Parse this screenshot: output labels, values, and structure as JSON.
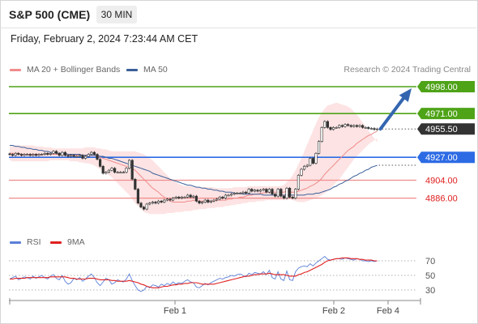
{
  "header": {
    "symbol": "S&P 500 (CME)",
    "interval": "30 MIN"
  },
  "datetime": "Friday, February 2, 2024 7:23:44 AM CET",
  "copyright": "Research © 2024 Trading Central",
  "legend": {
    "ma20": {
      "label": "MA 20 + Bollinger Bands",
      "color": "#f08c8c"
    },
    "ma50": {
      "label": "MA 50",
      "color": "#3b5f99"
    }
  },
  "rsi_legend": {
    "rsi": {
      "label": "RSI",
      "color": "#5b7fd8"
    },
    "ma9": {
      "label": "9MA",
      "color": "#e02020"
    }
  },
  "colors": {
    "resistance": "#4ea317",
    "pivot": "#2d6be4",
    "support": "#f08c8c",
    "support_text": "#e02020",
    "current": "#333333",
    "arrow": "#3466b0",
    "band_fill": "#fcdcdc",
    "candle": "#333333"
  },
  "chart_data": [
    {
      "type": "candlestick",
      "ylim": [
        4872,
        5004
      ],
      "x_labels": [
        "Feb 1",
        "Feb 2",
        "Feb 4"
      ],
      "levels": [
        {
          "value": 4998.0,
          "label": "4998.00",
          "kind": "resistance"
        },
        {
          "value": 4971.0,
          "label": "4971.00",
          "kind": "resistance"
        },
        {
          "value": 4955.5,
          "label": "4955.50",
          "kind": "current"
        },
        {
          "value": 4927.0,
          "label": "4927.00",
          "kind": "pivot"
        },
        {
          "value": 4904.0,
          "label": "4904.00",
          "kind": "support"
        },
        {
          "value": 4886.0,
          "label": "4886.00",
          "kind": "support"
        }
      ],
      "forecast_target": 4998.0,
      "closes": [
        4930,
        4929,
        4931,
        4930,
        4929,
        4930,
        4930,
        4929,
        4930,
        4929,
        4930,
        4930,
        4931,
        4930,
        4931,
        4933,
        4931,
        4929,
        4932,
        4929,
        4928,
        4929,
        4928,
        4928,
        4929,
        4926,
        4928,
        4930,
        4932,
        4930,
        4925,
        4918,
        4911,
        4912,
        4914,
        4916,
        4912,
        4912,
        4912,
        4912,
        4916,
        4924,
        4905,
        4895,
        4881,
        4877,
        4875,
        4880,
        4881,
        4882,
        4881,
        4883,
        4882,
        4884,
        4885,
        4884,
        4886,
        4887,
        4886,
        4887,
        4887,
        4889,
        4887,
        4888,
        4883,
        4881,
        4882,
        4884,
        4882,
        4883,
        4884,
        4885,
        4887,
        4886,
        4889,
        4889,
        4890,
        4891,
        4891,
        4891,
        4892,
        4891,
        4895,
        4893,
        4894,
        4893,
        4894,
        4895,
        4892,
        4895,
        4890,
        4888,
        4895,
        4888,
        4886,
        4896,
        4887,
        4886,
        4895,
        4909,
        4915,
        4918,
        4919,
        4926,
        4921,
        4931,
        4943,
        4957,
        4963,
        4957,
        4955,
        4957,
        4957,
        4959,
        4958,
        4960,
        4959,
        4958,
        4959,
        4958,
        4959,
        4957,
        4957,
        4956,
        4956,
        4955,
        4955.5
      ],
      "ma20": [
        4931,
        4931,
        4931,
        4931,
        4930,
        4930,
        4930,
        4930,
        4930,
        4930,
        4930,
        4930,
        4930,
        4930,
        4930,
        4930,
        4930,
        4930,
        4930,
        4930,
        4930,
        4929,
        4929,
        4929,
        4929,
        4929,
        4929,
        4929,
        4929,
        4929,
        4928,
        4927,
        4926,
        4925,
        4924,
        4923,
        4922,
        4921,
        4920,
        4919,
        4918,
        4918,
        4916,
        4914,
        4911,
        4908,
        4905,
        4902,
        4899,
        4896,
        4894,
        4892,
        4889,
        4887,
        4885,
        4883,
        4882,
        4882,
        4882,
        4882,
        4882,
        4883,
        4883,
        4884,
        4883,
        4883,
        4883,
        4883,
        4883,
        4883,
        4883,
        4884,
        4884,
        4884,
        4884,
        4885,
        4885,
        4886,
        4886,
        4887,
        4887,
        4888,
        4889,
        4889,
        4890,
        4890,
        4891,
        4891,
        4892,
        4892,
        4892,
        4892,
        4892,
        4892,
        4892,
        4893,
        4892,
        4892,
        4892,
        4893,
        4894,
        4895,
        4896,
        4898,
        4899,
        4901,
        4903,
        4906,
        4910,
        4913,
        4916,
        4919,
        4922,
        4925,
        4928,
        4931,
        4934,
        4936,
        4938,
        4941,
        4943,
        4945,
        4947,
        4949,
        4950,
        4952,
        4953
      ],
      "ma50": [
        4939,
        4939,
        4938,
        4938,
        4937,
        4937,
        4936,
        4936,
        4935,
        4935,
        4934,
        4934,
        4933,
        4933,
        4932,
        4932,
        4931,
        4931,
        4931,
        4931,
        4930,
        4930,
        4930,
        4930,
        4930,
        4929,
        4929,
        4929,
        4929,
        4929,
        4929,
        4928,
        4928,
        4927,
        4926,
        4926,
        4925,
        4924,
        4923,
        4922,
        4921,
        4920,
        4919,
        4918,
        4917,
        4916,
        4915,
        4914,
        4913,
        4911,
        4910,
        4909,
        4908,
        4907,
        4906,
        4905,
        4904,
        4903,
        4902,
        4901,
        4900,
        4899,
        4899,
        4898,
        4897,
        4897,
        4896,
        4896,
        4895,
        4895,
        4894,
        4894,
        4893,
        4893,
        4892,
        4892,
        4892,
        4891,
        4891,
        4891,
        4890,
        4890,
        4890,
        4890,
        4890,
        4890,
        4890,
        4889,
        4889,
        4889,
        4889,
        4889,
        4889,
        4889,
        4889,
        4889,
        4889,
        4889,
        4889,
        4889,
        4889,
        4889,
        4890,
        4890,
        4890,
        4891,
        4891,
        4892,
        4893,
        4894,
        4895,
        4897,
        4898,
        4900,
        4901,
        4903,
        4904,
        4906,
        4908,
        4909,
        4911,
        4912,
        4914,
        4915,
        4917,
        4918,
        4919
      ],
      "bb_upper": [
        4938,
        4938,
        4939,
        4939,
        4939,
        4939,
        4939,
        4939,
        4939,
        4938,
        4938,
        4938,
        4937,
        4937,
        4937,
        4936,
        4936,
        4936,
        4936,
        4936,
        4936,
        4936,
        4936,
        4936,
        4936,
        4936,
        4937,
        4937,
        4937,
        4937,
        4936,
        4936,
        4935,
        4935,
        4934,
        4933,
        4933,
        4933,
        4933,
        4933,
        4933,
        4933,
        4933,
        4933,
        4932,
        4931,
        4930,
        4928,
        4926,
        4924,
        4921,
        4918,
        4915,
        4912,
        4909,
        4906,
        4904,
        4902,
        4900,
        4899,
        4898,
        4898,
        4898,
        4897,
        4897,
        4897,
        4897,
        4897,
        4897,
        4897,
        4897,
        4896,
        4896,
        4896,
        4896,
        4896,
        4896,
        4897,
        4897,
        4897,
        4897,
        4897,
        4898,
        4898,
        4898,
        4898,
        4898,
        4898,
        4898,
        4898,
        4898,
        4898,
        4898,
        4898,
        4899,
        4902,
        4905,
        4909,
        4914,
        4920,
        4926,
        4933,
        4940,
        4947,
        4954,
        4961,
        4967,
        4972,
        4976,
        4979,
        4980,
        4981,
        4982,
        4981,
        4980,
        4979,
        4978,
        4976,
        4973,
        4970,
        4966,
        4962,
        4958,
        4954,
        4950,
        4946,
        4942
      ],
      "bb_lower": [
        4924,
        4923,
        4923,
        4923,
        4923,
        4923,
        4923,
        4923,
        4923,
        4923,
        4923,
        4923,
        4923,
        4923,
        4924,
        4924,
        4924,
        4924,
        4924,
        4924,
        4924,
        4923,
        4923,
        4923,
        4922,
        4922,
        4921,
        4921,
        4920,
        4919,
        4917,
        4915,
        4913,
        4911,
        4909,
        4907,
        4904,
        4901,
        4898,
        4895,
        4892,
        4889,
        4885,
        4881,
        4878,
        4875,
        4872,
        4871,
        4870,
        4870,
        4870,
        4870,
        4870,
        4870,
        4871,
        4871,
        4871,
        4872,
        4872,
        4872,
        4873,
        4873,
        4873,
        4874,
        4874,
        4875,
        4875,
        4875,
        4876,
        4876,
        4876,
        4877,
        4877,
        4877,
        4878,
        4878,
        4879,
        4879,
        4880,
        4880,
        4881,
        4881,
        4882,
        4882,
        4882,
        4883,
        4883,
        4883,
        4884,
        4884,
        4884,
        4884,
        4884,
        4884,
        4884,
        4884,
        4885,
        4884,
        4883,
        4882,
        4882,
        4882,
        4883,
        4884,
        4885,
        4886,
        4887,
        4889,
        4891,
        4893,
        4896,
        4899,
        4902,
        4905,
        4909,
        4913,
        4917,
        4921,
        4925,
        4928,
        4931,
        4934,
        4937,
        4940,
        4942,
        4944,
        4946
      ]
    },
    {
      "type": "line",
      "title": "RSI",
      "ylim": [
        20,
        80
      ],
      "y_ticks": [
        70,
        50,
        30
      ],
      "rsi": [
        45,
        47,
        49,
        44,
        46,
        48,
        47,
        45,
        49,
        46,
        48,
        50,
        47,
        45,
        49,
        51,
        46,
        44,
        50,
        42,
        38,
        40,
        46,
        44,
        47,
        42,
        45,
        49,
        52,
        47,
        40,
        36,
        41,
        46,
        44,
        38,
        40,
        44,
        42,
        41,
        45,
        52,
        43,
        36,
        30,
        28,
        30,
        35,
        33,
        37,
        36,
        34,
        38,
        36,
        39,
        37,
        41,
        38,
        40,
        39,
        42,
        44,
        41,
        40,
        34,
        33,
        36,
        39,
        37,
        40,
        42,
        44,
        46,
        45,
        47,
        48,
        50,
        49,
        51,
        52,
        50,
        48,
        53,
        51,
        54,
        53,
        52,
        55,
        51,
        57,
        47,
        45,
        55,
        45,
        43,
        56,
        44,
        43,
        55,
        60,
        62,
        63,
        62,
        66,
        63,
        67,
        70,
        73,
        76,
        72,
        71,
        72,
        73,
        73,
        72,
        74,
        73,
        72,
        71,
        73,
        72,
        70,
        70,
        69,
        70,
        69,
        70
      ],
      "ma9": [
        45,
        45,
        46,
        46,
        46,
        46,
        47,
        47,
        47,
        47,
        47,
        47,
        47,
        47,
        48,
        48,
        48,
        48,
        48,
        48,
        47,
        46,
        46,
        45,
        45,
        45,
        45,
        46,
        46,
        46,
        45,
        44,
        44,
        44,
        44,
        43,
        43,
        42,
        42,
        42,
        42,
        43,
        42,
        41,
        40,
        38,
        37,
        35,
        34,
        33,
        33,
        33,
        34,
        35,
        35,
        36,
        37,
        37,
        38,
        38,
        39,
        39,
        40,
        40,
        40,
        39,
        38,
        38,
        38,
        38,
        38,
        39,
        40,
        41,
        42,
        43,
        44,
        45,
        46,
        47,
        48,
        49,
        49,
        50,
        51,
        51,
        52,
        52,
        52,
        53,
        52,
        51,
        51,
        51,
        51,
        50,
        49,
        49,
        49,
        51,
        52,
        54,
        55,
        57,
        59,
        61,
        63,
        65,
        68,
        70,
        71,
        72,
        73,
        73,
        74,
        74,
        74,
        73,
        73,
        73,
        72,
        72,
        71,
        71,
        71,
        70,
        70
      ]
    }
  ]
}
